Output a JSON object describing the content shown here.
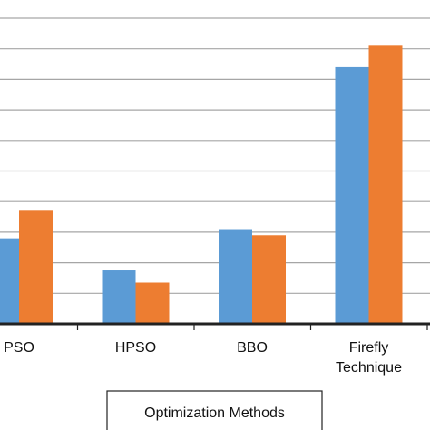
{
  "chart_data": {
    "type": "bar",
    "categories": [
      [
        "PSO"
      ],
      [
        "HPSO"
      ],
      [
        "BBO"
      ],
      [
        "Firefly",
        "Technique"
      ]
    ],
    "series": [
      {
        "color": "#5B9BD5",
        "values": [
          2.8,
          1.75,
          3.1,
          8.4
        ]
      },
      {
        "color": "#ED7D31",
        "values": [
          3.7,
          1.35,
          2.9,
          9.1
        ]
      }
    ],
    "ylim": [
      0,
      10
    ],
    "grid": true,
    "xlabel": "Optimization Methods",
    "ylabel": ""
  }
}
